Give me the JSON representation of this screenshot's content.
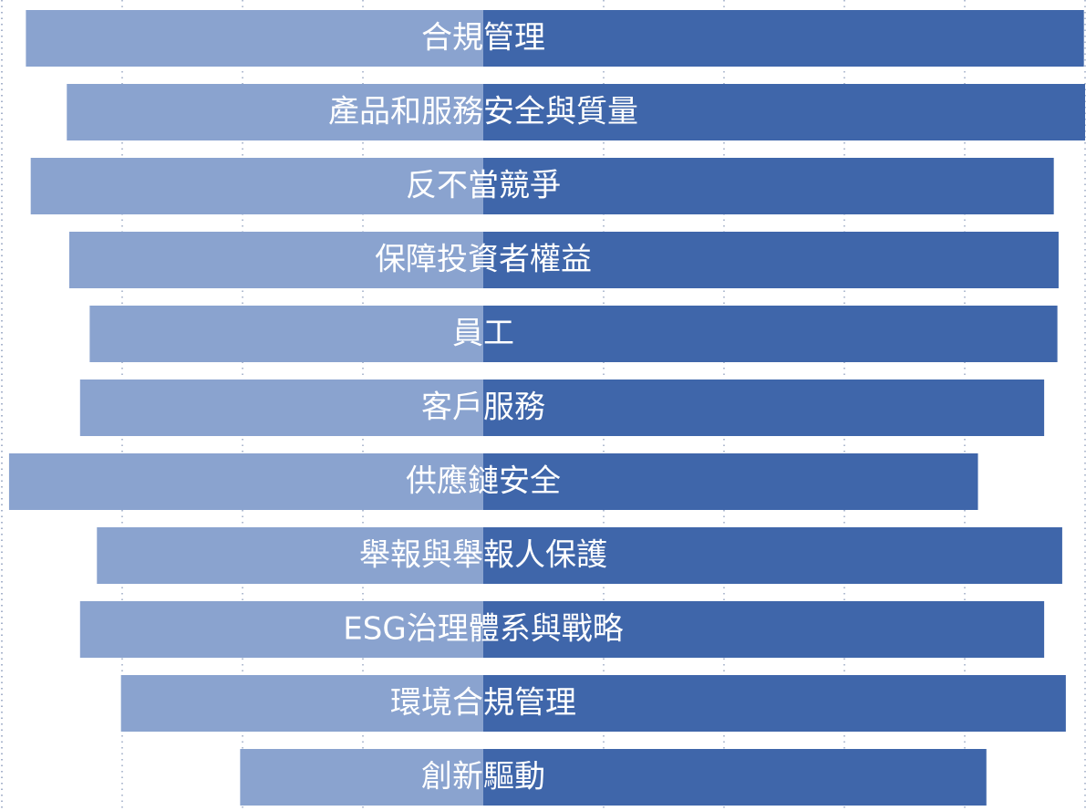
{
  "chart_data": {
    "type": "bar",
    "orientation": "horizontal",
    "layout": "diverging",
    "colors": {
      "left_segment": "#8aa3cf",
      "right_segment": "#3f66aa",
      "grid": "#9aa8c4"
    },
    "grid": true,
    "categories": [
      "合規管理",
      "產品和服務安全與質量",
      "反不當競爭",
      "保障投資者權益",
      "員工",
      "客戶服務",
      "供應鏈安全",
      "舉報與舉報人保護",
      "ESG治理體系與戰略",
      "環境合規管理",
      "創新驅動"
    ],
    "series": [
      {
        "values": [
          -3.8,
          -3.46,
          -3.76,
          -3.44,
          -3.27,
          -3.35,
          -3.94,
          -3.21,
          -3.35,
          -3.01,
          -2.02
        ]
      },
      {
        "values": [
          4.99,
          5.0,
          4.74,
          4.78,
          4.77,
          4.66,
          4.11,
          4.81,
          4.66,
          4.84,
          4.18
        ]
      }
    ],
    "xlim": [
      -4.0,
      5.0
    ]
  }
}
